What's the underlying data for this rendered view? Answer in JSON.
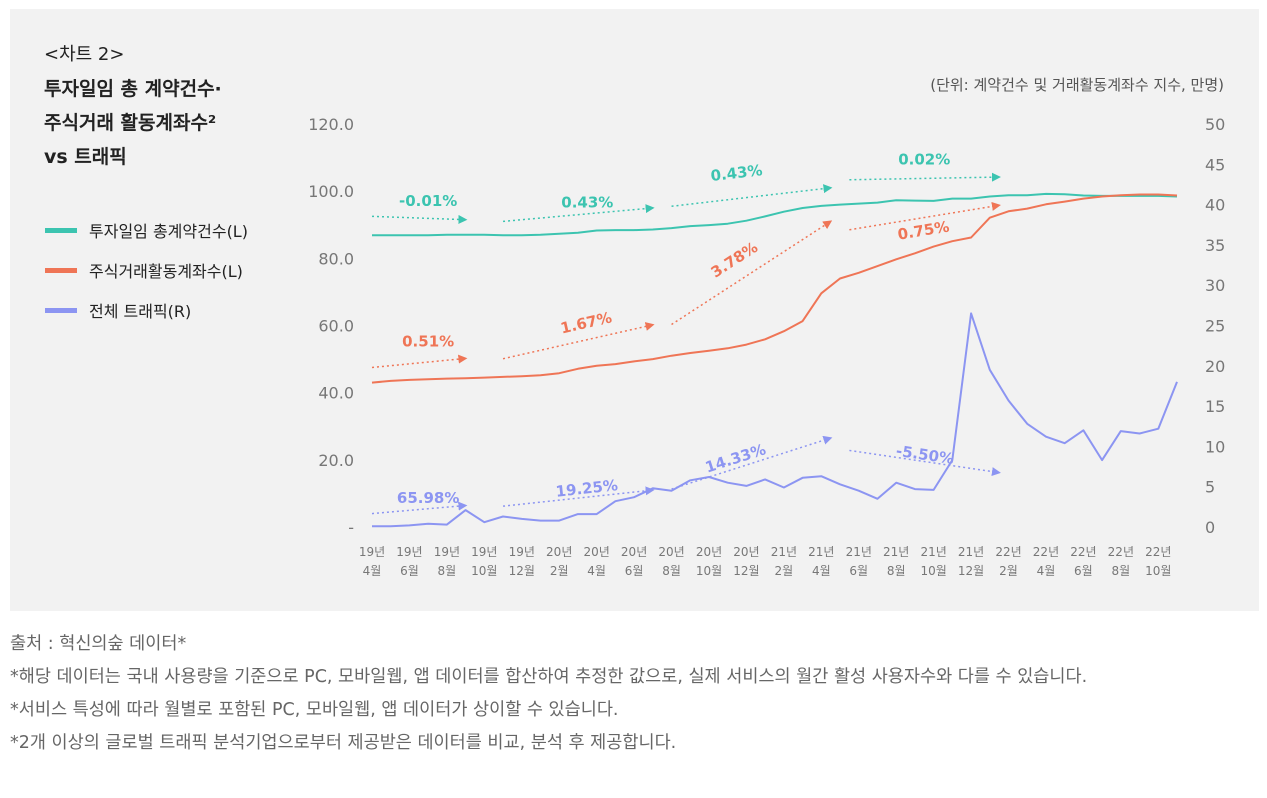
{
  "header": {
    "chart_label": "<차트 2>",
    "title_lines": [
      "투자일임 총 계약건수·",
      "주식거래 활동계좌수²",
      "vs 트래픽"
    ],
    "unit": "(단위: 계약건수 및 거래활동계좌수 지수, 만명)"
  },
  "legend": [
    {
      "label": "투자일임 총계약건수(L)",
      "color": "#3cc4b0"
    },
    {
      "label": "주식거래활동계좌수(L)",
      "color": "#ef7556"
    },
    {
      "label": "전체 트래픽(R)",
      "color": "#8c95f2"
    }
  ],
  "chart_data": {
    "type": "line",
    "title": "투자일임 총 계약건수·주식거래 활동계좌수² vs 트래픽",
    "x": [
      "19년 4월",
      "19년 5월",
      "19년 6월",
      "19년 7월",
      "19년 8월",
      "19년 9월",
      "19년 10월",
      "19년 11월",
      "19년 12월",
      "20년 1월",
      "20년 2월",
      "20년 3월",
      "20년 4월",
      "20년 5월",
      "20년 6월",
      "20년 7월",
      "20년 8월",
      "20년 9월",
      "20년 10월",
      "20년 11월",
      "20년 12월",
      "21년 1월",
      "21년 2월",
      "21년 3월",
      "21년 4월",
      "21년 5월",
      "21년 6월",
      "21년 7월",
      "21년 8월",
      "21년 9월",
      "21년 10월",
      "21년 11월",
      "21년 12월",
      "22년 1월",
      "22년 2월",
      "22년 3월",
      "22년 4월",
      "22년 5월",
      "22년 6월",
      "22년 7월",
      "22년 8월",
      "22년 9월",
      "22년 10월",
      "22년 11월"
    ],
    "x_ticks": [
      {
        "index": 0,
        "top": "19년",
        "bottom": "4월"
      },
      {
        "index": 2,
        "top": "19년",
        "bottom": "6월"
      },
      {
        "index": 4,
        "top": "19년",
        "bottom": "8월"
      },
      {
        "index": 6,
        "top": "19년",
        "bottom": "10월"
      },
      {
        "index": 8,
        "top": "19년",
        "bottom": "12월"
      },
      {
        "index": 10,
        "top": "20년",
        "bottom": "2월"
      },
      {
        "index": 12,
        "top": "20년",
        "bottom": "4월"
      },
      {
        "index": 14,
        "top": "20년",
        "bottom": "6월"
      },
      {
        "index": 16,
        "top": "20년",
        "bottom": "8월"
      },
      {
        "index": 18,
        "top": "20년",
        "bottom": "10월"
      },
      {
        "index": 20,
        "top": "20년",
        "bottom": "12월"
      },
      {
        "index": 22,
        "top": "21년",
        "bottom": "2월"
      },
      {
        "index": 24,
        "top": "21년",
        "bottom": "4월"
      },
      {
        "index": 26,
        "top": "21년",
        "bottom": "6월"
      },
      {
        "index": 28,
        "top": "21년",
        "bottom": "8월"
      },
      {
        "index": 30,
        "top": "21년",
        "bottom": "10월"
      },
      {
        "index": 32,
        "top": "21년",
        "bottom": "12월"
      },
      {
        "index": 34,
        "top": "22년",
        "bottom": "2월"
      },
      {
        "index": 36,
        "top": "22년",
        "bottom": "4월"
      },
      {
        "index": 38,
        "top": "22년",
        "bottom": "6월"
      },
      {
        "index": 40,
        "top": "22년",
        "bottom": "8월"
      },
      {
        "index": 42,
        "top": "22년",
        "bottom": "10월"
      }
    ],
    "y_left": {
      "min": 0,
      "max": 120,
      "ticks": [
        0,
        20,
        40,
        60,
        80,
        100,
        120
      ],
      "tick_labels": [
        "-",
        "20.0",
        "40.0",
        "60.0",
        "80.0",
        "100.0",
        "120.0"
      ]
    },
    "y_right": {
      "min": 0,
      "max": 50,
      "ticks": [
        0,
        5,
        10,
        15,
        20,
        25,
        30,
        35,
        40,
        45,
        50
      ],
      "tick_labels": [
        "0",
        "5",
        "10",
        "15",
        "20",
        "25",
        "30",
        "35",
        "40",
        "45",
        "50"
      ]
    },
    "series": [
      {
        "name": "투자일임 총계약건수(L)",
        "axis": "left",
        "color": "#3cc4b0",
        "values": [
          86.9,
          86.9,
          86.9,
          86.9,
          87.0,
          87.0,
          87.0,
          86.9,
          86.9,
          87.0,
          87.3,
          87.6,
          88.3,
          88.4,
          88.4,
          88.6,
          89.0,
          89.6,
          89.9,
          90.3,
          91.2,
          92.5,
          93.9,
          95.0,
          95.6,
          96.0,
          96.3,
          96.6,
          97.3,
          97.2,
          97.1,
          97.8,
          97.8,
          98.4,
          98.8,
          98.8,
          99.2,
          99.1,
          98.7,
          98.6,
          98.6,
          98.6,
          98.6,
          98.4
        ]
      },
      {
        "name": "주식거래활동계좌수(L)",
        "axis": "left",
        "color": "#ef7556",
        "values": [
          43.0,
          43.5,
          43.8,
          44.0,
          44.2,
          44.3,
          44.5,
          44.7,
          44.9,
          45.2,
          45.8,
          47.1,
          48.0,
          48.5,
          49.3,
          50.0,
          51.0,
          51.8,
          52.5,
          53.2,
          54.3,
          55.9,
          58.3,
          61.3,
          69.6,
          74.0,
          75.7,
          77.7,
          79.7,
          81.5,
          83.5,
          85.1,
          86.2,
          92.1,
          94.0,
          94.8,
          96.1,
          96.9,
          97.8,
          98.4,
          98.8,
          99.0,
          99.0,
          98.7
        ]
      },
      {
        "name": "전체 트래픽(R)",
        "axis": "right",
        "color": "#8c95f2",
        "values": [
          0.1,
          0.1,
          0.2,
          0.4,
          0.3,
          2.1,
          0.6,
          1.3,
          1.0,
          0.8,
          0.8,
          1.6,
          1.6,
          3.2,
          3.7,
          4.8,
          4.5,
          5.8,
          6.2,
          5.5,
          5.1,
          5.9,
          4.9,
          6.1,
          6.3,
          5.3,
          4.5,
          3.5,
          5.5,
          4.7,
          4.6,
          8.3,
          26.5,
          19.5,
          15.7,
          12.8,
          11.2,
          10.4,
          12.0,
          8.3,
          11.9,
          11.6,
          12.2,
          18.0
        ]
      }
    ],
    "annotations": [
      {
        "text": "-0.01%",
        "series": 0,
        "from": [
          0,
          92.5
        ],
        "to": [
          5,
          91.5
        ],
        "label_at": [
          3,
          95.6
        ]
      },
      {
        "text": "0.43%",
        "series": 0,
        "from": [
          7,
          91.0
        ],
        "to": [
          15,
          95.0
        ],
        "label_at": [
          11.5,
          95.2
        ]
      },
      {
        "text": "0.43%",
        "series": 0,
        "from": [
          16,
          95.5
        ],
        "to": [
          24.5,
          101.0
        ],
        "label_at": [
          19.5,
          103.9
        ]
      },
      {
        "text": "0.02%",
        "series": 0,
        "from": [
          25.5,
          103.4
        ],
        "to": [
          33.5,
          104.2
        ],
        "label_at": [
          29.5,
          107.9
        ]
      },
      {
        "text": "0.51%",
        "series": 1,
        "from": [
          0,
          47.5
        ],
        "to": [
          5,
          50.2
        ],
        "label_at": [
          3,
          53.7
        ]
      },
      {
        "text": "1.67%",
        "series": 1,
        "from": [
          7,
          50.1
        ],
        "to": [
          15,
          60.2
        ],
        "label_at": [
          11.5,
          59.3
        ]
      },
      {
        "text": "3.78%",
        "series": 1,
        "from": [
          16,
          60.3
        ],
        "to": [
          24.5,
          91.0
        ],
        "label_at": [
          19.5,
          78.3
        ]
      },
      {
        "text": "0.75%",
        "series": 1,
        "from": [
          25.5,
          88.5
        ],
        "to": [
          33.5,
          95.8
        ],
        "label_at": [
          29.5,
          86.8
        ]
      },
      {
        "text": "65.98%",
        "series": 2,
        "from": [
          0,
          4.0
        ],
        "to": [
          5,
          6.4
        ],
        "label_at": [
          3,
          7.2
        ]
      },
      {
        "text": "19.25%",
        "series": 2,
        "from": [
          7,
          6.2
        ],
        "to": [
          15,
          11.0
        ],
        "label_at": [
          11.5,
          10.0
        ]
      },
      {
        "text": "14.33%",
        "series": 2,
        "from": [
          16,
          11.3
        ],
        "to": [
          24.5,
          26.5
        ],
        "label_at": [
          19.5,
          19.0
        ]
      },
      {
        "text": "-5.50%",
        "series": 2,
        "from": [
          25.5,
          22.8
        ],
        "to": [
          33.5,
          16.2
        ],
        "label_at": [
          29.5,
          20.0
        ]
      }
    ]
  },
  "notes": {
    "source": "출처 : 혁신의숲 데이터*",
    "note1": "*해당 데이터는 국내 사용량을 기준으로 PC, 모바일웹, 앱 데이터를 합산하여 추정한 값으로, 실제 서비스의 월간 활성 사용자수와 다를 수 있습니다.",
    "note2": "*서비스 특성에 따라 월별로 포함된 PC, 모바일웹, 앱 데이터가 상이할 수 있습니다.",
    "note3": "*2개 이상의 글로벌 트래픽 분석기업으로부터 제공받은 데이터를 비교, 분석 후 제공합니다."
  }
}
